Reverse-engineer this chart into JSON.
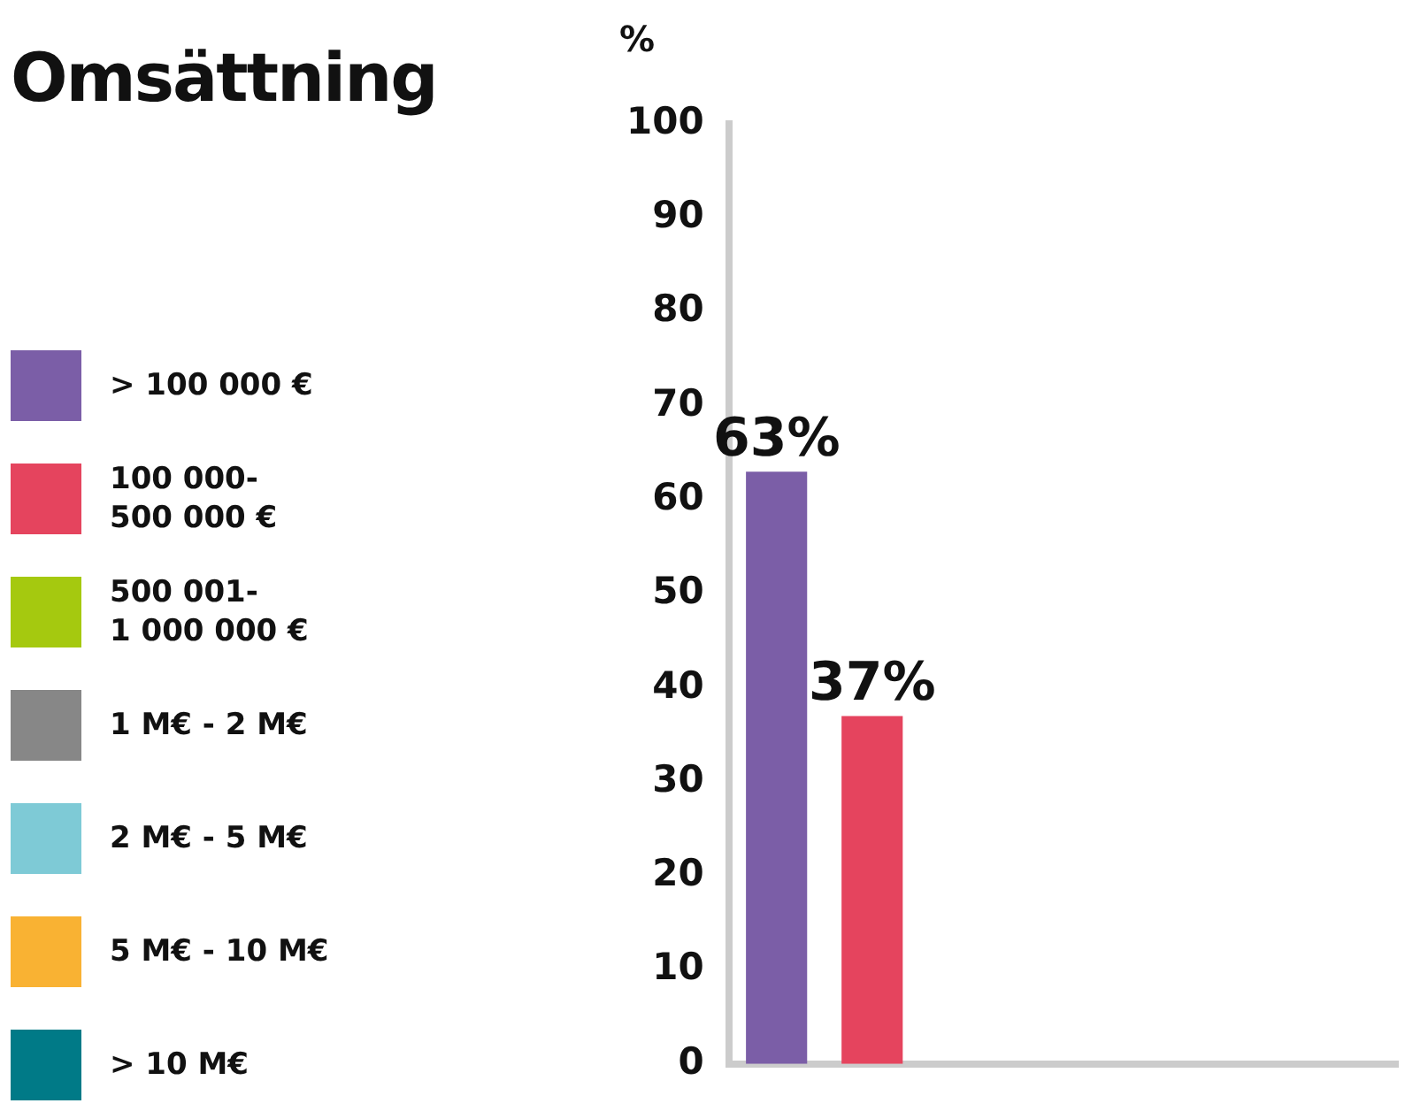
{
  "chart_data": {
    "type": "bar",
    "title": "Omsättning",
    "ylabel": "%",
    "categories": [
      null
    ],
    "series": [
      {
        "name": "> 100 000 €",
        "color": "#7b5ea7",
        "values": [
          63
        ],
        "value_labels": [
          "63%"
        ]
      },
      {
        "name": "100 000-500 000 €",
        "color": "#e5445e",
        "values": [
          37
        ],
        "value_labels": [
          "37%"
        ]
      },
      {
        "name": "500 001-1 000 000 €",
        "color": "#a5c90f",
        "values": [
          null
        ]
      },
      {
        "name": "1 M€ - 2 M€",
        "color": "#878787",
        "values": [
          null
        ]
      },
      {
        "name": "2 M€ - 5 M€",
        "color": "#7ecad6",
        "values": [
          null
        ]
      },
      {
        "name": "5 M€ - 10 M€",
        "color": "#f9b233",
        "values": [
          null
        ]
      },
      {
        "name": "> 10 M€",
        "color": "#007a87",
        "values": [
          null
        ]
      }
    ],
    "ylim": [
      0,
      100
    ],
    "yticks": [
      0,
      10,
      20,
      30,
      40,
      50,
      60,
      70,
      80,
      90,
      100
    ],
    "grid": false,
    "legend": "left"
  }
}
